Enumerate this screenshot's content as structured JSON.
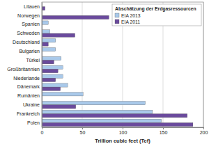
{
  "chart_data": {
    "type": "bar",
    "orientation": "horizontal",
    "title": "Abschätzung der Erdgasressourcen",
    "x_label": "Trillion cubic feet (Tcf)",
    "categories": [
      "Litauen",
      "Norwegen",
      "Spanien",
      "Schweden",
      "Deutschland",
      "Bulgarien",
      "Türkei",
      "Großbritannien",
      "Niederlande",
      "Dänemark",
      "Rumänien",
      "Ukraine",
      "Frankreich",
      "Polen"
    ],
    "series": [
      {
        "name": "EIA 2013",
        "color": "#a9c9ea",
        "values": [
          null,
          null,
          8,
          10,
          17,
          17,
          24,
          26,
          26,
          32,
          51,
          128,
          137,
          148
        ]
      },
      {
        "name": "EIA 2011",
        "color": "#6a4a9c",
        "values": [
          4,
          83,
          null,
          41,
          8,
          null,
          15,
          20,
          17,
          23,
          null,
          42,
          180,
          187
        ]
      }
    ],
    "xlim": [
      0,
      200
    ],
    "xticks": [
      0,
      50,
      100,
      150,
      200
    ],
    "grid": true,
    "legend": "upper right"
  }
}
